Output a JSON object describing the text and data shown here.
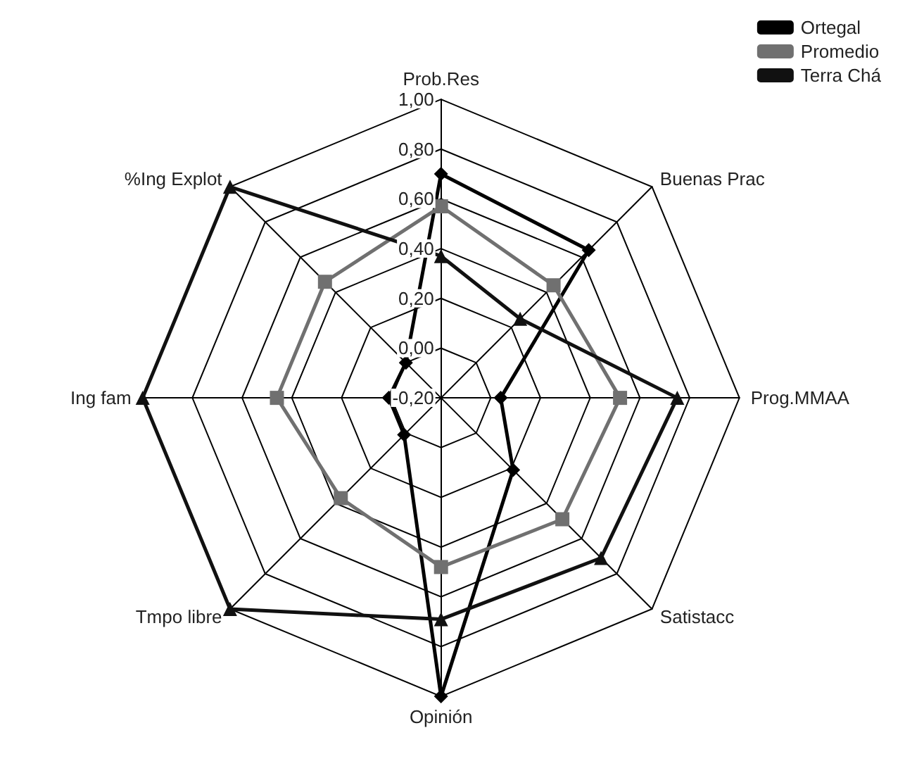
{
  "chart_data": {
    "type": "radar",
    "categories": [
      "Prob.Res",
      "Buenas Prac",
      "Prog.MMAA",
      "Satistacc",
      "Opinión",
      "Tmpo libre",
      "Ing fam",
      "%Ing Explot"
    ],
    "series": [
      {
        "name": "Ortegal",
        "color": "#000000",
        "marker": "diamond",
        "values": [
          0.7,
          0.64,
          0.04,
          0.21,
          1.0,
          0.01,
          0.01,
          0.0
        ]
      },
      {
        "name": "Promedio",
        "color": "#707070",
        "marker": "square",
        "values": [
          0.57,
          0.44,
          0.52,
          0.49,
          0.48,
          0.37,
          0.46,
          0.46
        ]
      },
      {
        "name": "Terra Chá",
        "color": "#111111",
        "marker": "triangle",
        "values": [
          0.37,
          0.25,
          0.75,
          0.71,
          0.69,
          1.0,
          1.0,
          1.0
        ]
      }
    ],
    "ylim": [
      -0.2,
      1.0
    ],
    "yticks": [
      {
        "value": -0.2,
        "label": "-0,20"
      },
      {
        "value": 0,
        "label": "0,00"
      },
      {
        "value": 0.2,
        "label": "0,20"
      },
      {
        "value": 0.4,
        "label": "0,40"
      },
      {
        "value": 0.6,
        "label": "0,60"
      },
      {
        "value": 0.8,
        "label": "0,80"
      },
      {
        "value": 1.0,
        "label": "1,00"
      }
    ],
    "grid": true,
    "legend": "top right"
  }
}
